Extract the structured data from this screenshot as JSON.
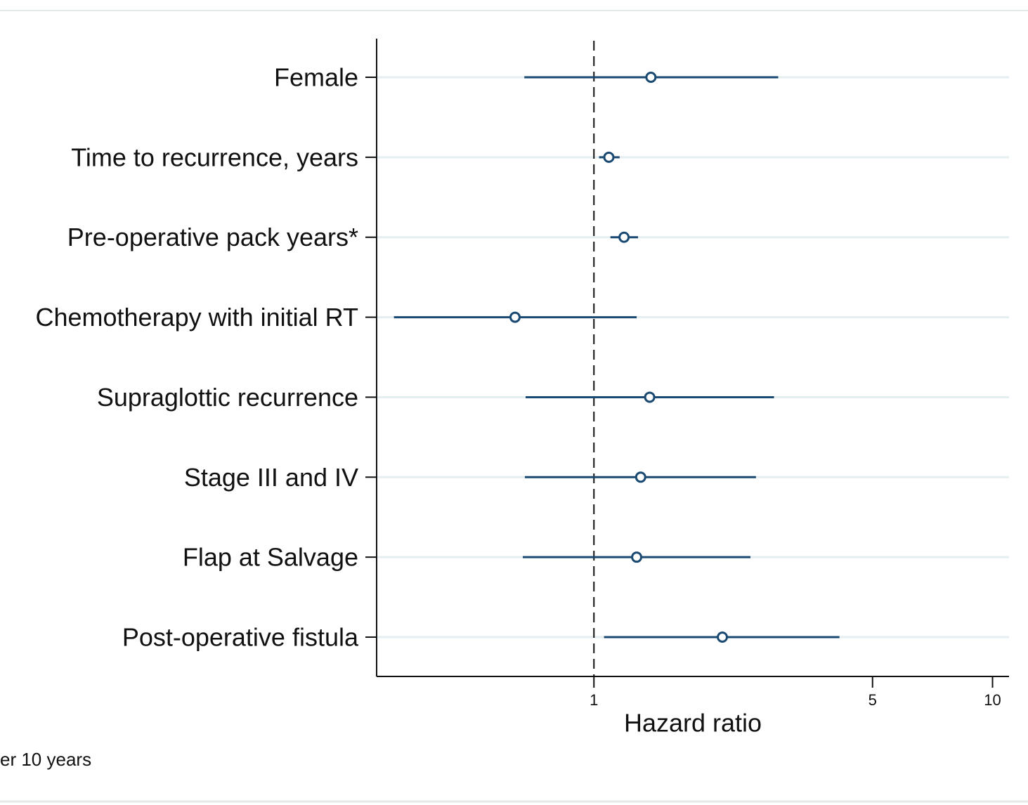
{
  "chart_data": {
    "type": "forest",
    "categories": [
      "Female",
      "Time to recurrence, years",
      "Pre-operative pack years*",
      "Chemotherapy with initial RT",
      "Supraglottic recurrence",
      "Stage III and IV",
      "Flap at Salvage",
      "Post-operative fistula"
    ],
    "values": [
      1.39,
      1.09,
      1.19,
      0.634,
      1.38,
      1.31,
      1.28,
      2.1
    ],
    "lower": [
      0.669,
      1.03,
      1.1,
      0.315,
      0.674,
      0.671,
      0.663,
      1.06
    ],
    "upper": [
      2.9,
      1.16,
      1.29,
      1.28,
      2.83,
      2.55,
      2.47,
      4.13
    ],
    "color": "#1a4a72",
    "xlim": [
      0.285,
      11.0
    ],
    "xticks": [
      1,
      5,
      10
    ],
    "log_x": true,
    "refline": 1,
    "grid": true,
    "xlabel": "Hazard ratio",
    "footnote": "er 10 years"
  }
}
